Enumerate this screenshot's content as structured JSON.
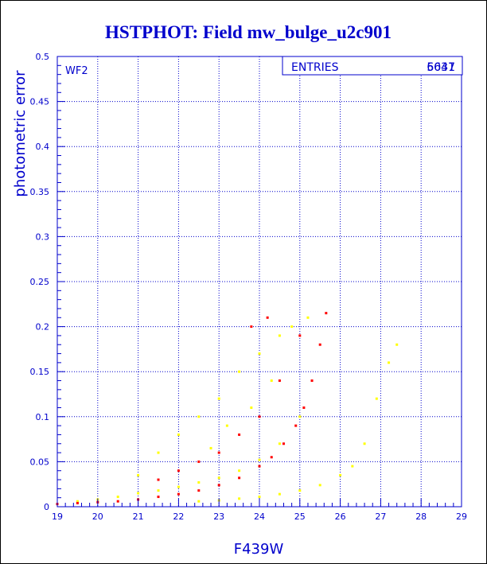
{
  "colors": {
    "title": "#0000cc",
    "axis": "#0000cc",
    "grid": "#0000cc",
    "series_yellow": "#ffff00",
    "series_red": "#ff0000"
  },
  "chart_data": {
    "type": "scatter",
    "title": "HSTPHOT: Field mw_bulge_u2c901",
    "xlabel": "F439W",
    "ylabel": "photometric error",
    "xlim": [
      19,
      29
    ],
    "ylim": [
      0,
      0.5
    ],
    "x_ticks": [
      "19",
      "20",
      "21",
      "22",
      "23",
      "24",
      "25",
      "26",
      "27",
      "28",
      "29"
    ],
    "y_ticks": [
      "0",
      "0.05",
      "0.1",
      "0.15",
      "0.2",
      "0.25",
      "0.3",
      "0.35",
      "0.4",
      "0.45",
      "0.5"
    ],
    "grid": true,
    "annotation": "WF2",
    "stats_box": {
      "label": "ENTRIES",
      "values": [
        "5637",
        "6041"
      ]
    },
    "series": [
      {
        "color": "yellow",
        "approximate_points": [
          [
            19.5,
            0.006
          ],
          [
            20.0,
            0.008
          ],
          [
            20.5,
            0.011
          ],
          [
            21.0,
            0.015
          ],
          [
            21.0,
            0.035
          ],
          [
            21.5,
            0.018
          ],
          [
            21.5,
            0.06
          ],
          [
            22.0,
            0.022
          ],
          [
            22.0,
            0.08
          ],
          [
            22.5,
            0.027
          ],
          [
            22.5,
            0.1
          ],
          [
            22.8,
            0.065
          ],
          [
            23.0,
            0.032
          ],
          [
            23.0,
            0.12
          ],
          [
            23.2,
            0.09
          ],
          [
            23.5,
            0.04
          ],
          [
            23.5,
            0.15
          ],
          [
            23.8,
            0.11
          ],
          [
            24.0,
            0.052
          ],
          [
            24.0,
            0.17
          ],
          [
            24.3,
            0.14
          ],
          [
            24.5,
            0.07
          ],
          [
            24.5,
            0.19
          ],
          [
            24.8,
            0.2
          ],
          [
            25.0,
            0.1
          ],
          [
            25.2,
            0.21
          ],
          [
            22.5,
            0.006
          ],
          [
            23.0,
            0.007
          ],
          [
            23.5,
            0.009
          ],
          [
            24.0,
            0.011
          ],
          [
            24.5,
            0.014
          ],
          [
            25.0,
            0.018
          ],
          [
            25.5,
            0.024
          ],
          [
            26.0,
            0.035
          ],
          [
            26.3,
            0.045
          ],
          [
            26.6,
            0.07
          ],
          [
            26.9,
            0.12
          ],
          [
            27.2,
            0.16
          ],
          [
            27.4,
            0.18
          ]
        ]
      },
      {
        "color": "red",
        "approximate_points": [
          [
            19.0,
            0.003
          ],
          [
            19.5,
            0.004
          ],
          [
            20.0,
            0.005
          ],
          [
            20.5,
            0.006
          ],
          [
            21.0,
            0.008
          ],
          [
            21.5,
            0.011
          ],
          [
            22.0,
            0.014
          ],
          [
            22.5,
            0.018
          ],
          [
            23.0,
            0.024
          ],
          [
            23.5,
            0.032
          ],
          [
            24.0,
            0.045
          ],
          [
            24.3,
            0.055
          ],
          [
            24.6,
            0.07
          ],
          [
            24.9,
            0.09
          ],
          [
            25.1,
            0.11
          ],
          [
            25.3,
            0.14
          ],
          [
            25.5,
            0.18
          ],
          [
            25.65,
            0.215
          ],
          [
            21.5,
            0.03
          ],
          [
            22.0,
            0.04
          ],
          [
            22.5,
            0.05
          ],
          [
            23.0,
            0.06
          ],
          [
            23.5,
            0.08
          ],
          [
            24.0,
            0.1
          ],
          [
            24.5,
            0.14
          ],
          [
            25.0,
            0.19
          ],
          [
            23.8,
            0.2
          ],
          [
            24.2,
            0.21
          ]
        ]
      }
    ]
  }
}
